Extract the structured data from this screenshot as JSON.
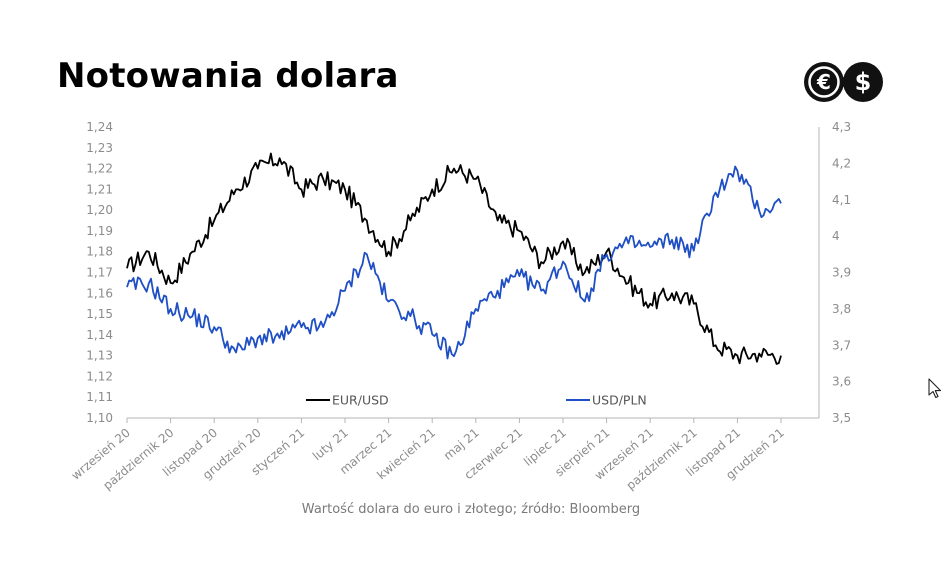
{
  "header": {
    "title": "Notowania dolara"
  },
  "logo": {
    "icons": [
      "euro-coin-icon",
      "dollar-coin-icon"
    ],
    "euro_symbol": "€",
    "dollar_symbol": "$"
  },
  "caption": "Wartość dolara do euro i złotego; źródło: Bloomberg",
  "colors": {
    "eur_usd": "#000000",
    "usd_pln": "#1f4fc4",
    "axis": "#b5b5b5",
    "ticks": "#8c8c8c"
  },
  "chart_data": {
    "type": "line",
    "title": "Notowania dolara",
    "subtitle": "Wartość dolara do euro i złotego; źródło: Bloomberg",
    "x_tick_labels": [
      "wrzesień 20",
      "październik 20",
      "listopad 20",
      "grudzień 20",
      "styczeń 21",
      "luty 21",
      "marzec 21",
      "kwiecień 21",
      "maj 21",
      "czerwiec 21",
      "lipiec 21",
      "sierpień 21",
      "wrzesień 21",
      "październik 21",
      "listopad 21",
      "grudzień 21"
    ],
    "y_left": {
      "ticks": [
        "1,10",
        "1,11",
        "1,12",
        "1,13",
        "1,14",
        "1,15",
        "1,16",
        "1,17",
        "1,18",
        "1,19",
        "1,20",
        "1,21",
        "1,22",
        "1,23",
        "1,24"
      ],
      "lim": [
        1.1,
        1.24
      ]
    },
    "y_right": {
      "ticks": [
        "3,5",
        "3,6",
        "3,7",
        "3,8",
        "3,9",
        "4",
        "4,1",
        "4,2",
        "4,3"
      ],
      "lim": [
        3.5,
        4.3
      ]
    },
    "legend_placement": "bottom-inside",
    "x_months": [
      0,
      0.5,
      1,
      1.5,
      2,
      2.5,
      3,
      3.5,
      4,
      4.5,
      5,
      5.5,
      6,
      6.5,
      7,
      7.5,
      8,
      8.5,
      9,
      9.5,
      10,
      10.5,
      11,
      11.5,
      12,
      12.5,
      13,
      13.5,
      14,
      14.5,
      15
    ],
    "series": [
      {
        "name": "EUR/USD",
        "axis": "left",
        "values": [
          1.172,
          1.18,
          1.165,
          1.18,
          1.195,
          1.21,
          1.22,
          1.225,
          1.21,
          1.215,
          1.21,
          1.195,
          1.18,
          1.195,
          1.21,
          1.22,
          1.215,
          1.195,
          1.19,
          1.175,
          1.185,
          1.17,
          1.18,
          1.165,
          1.155,
          1.16,
          1.155,
          1.135,
          1.13,
          1.131,
          1.13
        ]
      },
      {
        "name": "USD/PLN",
        "axis": "right",
        "values": [
          3.86,
          3.87,
          3.8,
          3.78,
          3.75,
          3.68,
          3.72,
          3.72,
          3.75,
          3.75,
          3.85,
          3.95,
          3.82,
          3.78,
          3.73,
          3.67,
          3.8,
          3.85,
          3.89,
          3.85,
          3.93,
          3.82,
          3.95,
          3.98,
          3.97,
          3.99,
          3.96,
          4.12,
          4.18,
          4.07,
          4.09
        ]
      }
    ]
  }
}
